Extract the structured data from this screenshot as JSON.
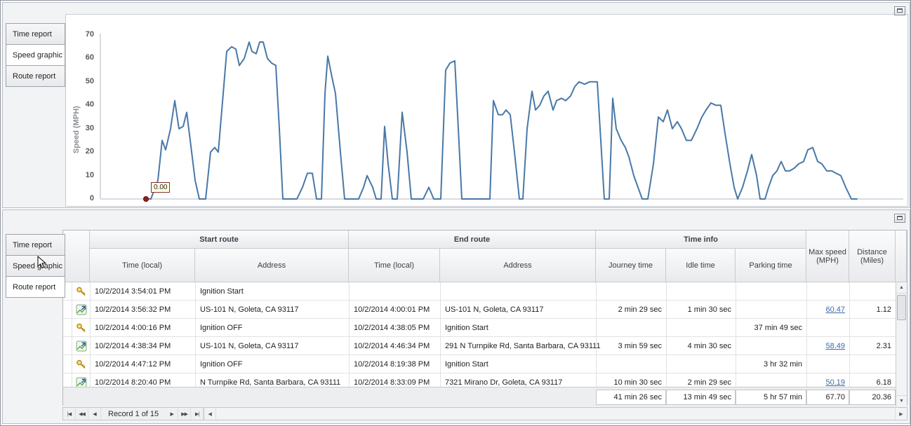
{
  "top_panel": {
    "tabs": [
      {
        "label": "Time report",
        "active": false
      },
      {
        "label": "Speed graphic",
        "active": true
      },
      {
        "label": "Route report",
        "active": false
      }
    ]
  },
  "chart_data": {
    "type": "line",
    "title": "",
    "xlabel": "",
    "ylabel": "Speed (MPH)",
    "ylim": [
      0,
      70
    ],
    "yticks": [
      0,
      10,
      20,
      30,
      40,
      50,
      60,
      70
    ],
    "grid": false,
    "legend": "none",
    "line_color": "#4878a8",
    "marker": {
      "x": 65,
      "value": 0,
      "label": "0.00"
    },
    "points": [
      [
        65,
        0
      ],
      [
        72,
        0
      ],
      [
        82,
        8
      ],
      [
        88,
        25
      ],
      [
        93,
        21
      ],
      [
        100,
        30
      ],
      [
        106,
        42
      ],
      [
        112,
        30
      ],
      [
        118,
        31
      ],
      [
        123,
        37
      ],
      [
        128,
        25
      ],
      [
        135,
        8
      ],
      [
        141,
        0
      ],
      [
        150,
        0
      ],
      [
        157,
        20
      ],
      [
        163,
        22
      ],
      [
        168,
        20
      ],
      [
        175,
        45
      ],
      [
        180,
        63
      ],
      [
        187,
        65
      ],
      [
        193,
        64
      ],
      [
        198,
        57
      ],
      [
        205,
        60
      ],
      [
        212,
        67
      ],
      [
        216,
        63
      ],
      [
        222,
        62
      ],
      [
        227,
        67
      ],
      [
        232,
        67
      ],
      [
        238,
        60
      ],
      [
        244,
        58
      ],
      [
        250,
        57
      ],
      [
        255,
        30
      ],
      [
        260,
        0
      ],
      [
        280,
        0
      ],
      [
        288,
        5
      ],
      [
        295,
        11
      ],
      [
        302,
        11
      ],
      [
        308,
        0
      ],
      [
        315,
        0
      ],
      [
        320,
        45
      ],
      [
        324,
        61
      ],
      [
        330,
        52
      ],
      [
        335,
        45
      ],
      [
        342,
        20
      ],
      [
        348,
        0
      ],
      [
        368,
        0
      ],
      [
        375,
        5
      ],
      [
        380,
        10
      ],
      [
        388,
        5
      ],
      [
        393,
        0
      ],
      [
        400,
        0
      ],
      [
        405,
        31
      ],
      [
        410,
        15
      ],
      [
        416,
        0
      ],
      [
        423,
        0
      ],
      [
        430,
        37
      ],
      [
        437,
        20
      ],
      [
        443,
        0
      ],
      [
        460,
        0
      ],
      [
        468,
        5
      ],
      [
        475,
        0
      ],
      [
        485,
        0
      ],
      [
        492,
        55
      ],
      [
        498,
        58
      ],
      [
        505,
        59
      ],
      [
        510,
        30
      ],
      [
        515,
        0
      ],
      [
        555,
        0
      ],
      [
        560,
        42
      ],
      [
        567,
        36
      ],
      [
        573,
        36
      ],
      [
        578,
        38
      ],
      [
        584,
        36
      ],
      [
        590,
        20
      ],
      [
        597,
        0
      ],
      [
        602,
        0
      ],
      [
        608,
        30
      ],
      [
        615,
        46
      ],
      [
        620,
        38
      ],
      [
        626,
        40
      ],
      [
        632,
        44
      ],
      [
        638,
        46
      ],
      [
        645,
        38
      ],
      [
        650,
        42
      ],
      [
        657,
        43
      ],
      [
        663,
        42
      ],
      [
        670,
        44
      ],
      [
        676,
        48
      ],
      [
        682,
        50
      ],
      [
        690,
        49
      ],
      [
        697,
        50
      ],
      [
        703,
        50
      ],
      [
        708,
        50
      ],
      [
        713,
        25
      ],
      [
        718,
        0
      ],
      [
        725,
        0
      ],
      [
        730,
        43
      ],
      [
        735,
        30
      ],
      [
        742,
        25
      ],
      [
        748,
        22
      ],
      [
        753,
        18
      ],
      [
        760,
        10
      ],
      [
        766,
        5
      ],
      [
        772,
        0
      ],
      [
        780,
        0
      ],
      [
        788,
        15
      ],
      [
        795,
        35
      ],
      [
        802,
        33
      ],
      [
        808,
        38
      ],
      [
        815,
        30
      ],
      [
        822,
        33
      ],
      [
        828,
        30
      ],
      [
        835,
        25
      ],
      [
        842,
        25
      ],
      [
        850,
        30
      ],
      [
        857,
        35
      ],
      [
        863,
        38
      ],
      [
        870,
        41
      ],
      [
        877,
        40
      ],
      [
        884,
        40
      ],
      [
        890,
        28
      ],
      [
        897,
        15
      ],
      [
        903,
        5
      ],
      [
        908,
        0
      ],
      [
        915,
        5
      ],
      [
        922,
        12
      ],
      [
        928,
        19
      ],
      [
        935,
        10
      ],
      [
        940,
        0
      ],
      [
        947,
        0
      ],
      [
        952,
        5
      ],
      [
        958,
        10
      ],
      [
        964,
        12
      ],
      [
        970,
        16
      ],
      [
        976,
        12
      ],
      [
        982,
        12
      ],
      [
        988,
        13
      ],
      [
        995,
        15
      ],
      [
        1002,
        16
      ],
      [
        1008,
        21
      ],
      [
        1015,
        22
      ],
      [
        1022,
        16
      ],
      [
        1028,
        15
      ],
      [
        1035,
        12
      ],
      [
        1042,
        12
      ],
      [
        1048,
        11
      ],
      [
        1055,
        10
      ],
      [
        1062,
        5
      ],
      [
        1070,
        0
      ],
      [
        1078,
        0
      ]
    ]
  },
  "bottom_panel": {
    "tabs": [
      {
        "label": "Time report",
        "active": false
      },
      {
        "label": "Speed graphic",
        "active": false
      },
      {
        "label": "Route report",
        "active": true
      }
    ],
    "grid": {
      "groups": [
        "Start route",
        "End route",
        "Time info"
      ],
      "columns": [
        "Time (local)",
        "Address",
        "Time (local)",
        "Address",
        "Journey time",
        "Idle time",
        "Parking time",
        "Max speed (MPH)",
        "Distance (Miles)"
      ],
      "rows": [
        {
          "icon": "key-icon",
          "start_time": "10/2/2014 3:54:01 PM",
          "start_address": "Ignition Start",
          "end_time": "",
          "end_address": "",
          "journey_time": "",
          "idle_time": "",
          "parking_time": "",
          "max_speed": "",
          "distance": ""
        },
        {
          "icon": "route-icon",
          "start_time": "10/2/2014 3:56:32 PM",
          "start_address": "US-101 N, Goleta, CA 93117",
          "end_time": "10/2/2014 4:00:01 PM",
          "end_address": "US-101 N, Goleta, CA 93117",
          "journey_time": "2 min 29 sec",
          "idle_time": "1 min 30 sec",
          "parking_time": "",
          "max_speed": "60.47",
          "distance": "1.12"
        },
        {
          "icon": "key-icon",
          "start_time": "10/2/2014 4:00:16 PM",
          "start_address": "Ignition OFF",
          "end_time": "10/2/2014 4:38:05 PM",
          "end_address": "Ignition Start",
          "journey_time": "",
          "idle_time": "",
          "parking_time": "37 min 49 sec",
          "max_speed": "",
          "distance": ""
        },
        {
          "icon": "route-icon",
          "start_time": "10/2/2014 4:38:34 PM",
          "start_address": "US-101 N, Goleta, CA 93117",
          "end_time": "10/2/2014 4:46:34 PM",
          "end_address": "291 N Turnpike Rd, Santa Barbara, CA 93111",
          "journey_time": "3 min 59 sec",
          "idle_time": "4 min 30 sec",
          "parking_time": "",
          "max_speed": "58.49",
          "distance": "2.31"
        },
        {
          "icon": "key-icon",
          "start_time": "10/2/2014 4:47:12 PM",
          "start_address": "Ignition OFF",
          "end_time": "10/2/2014 8:19:38 PM",
          "end_address": "Ignition Start",
          "journey_time": "",
          "idle_time": "",
          "parking_time": "3 hr 32 min",
          "max_speed": "",
          "distance": ""
        },
        {
          "icon": "route-icon",
          "start_time": "10/2/2014 8:20:40 PM",
          "start_address": "N Turnpike Rd, Santa Barbara, CA 93111",
          "end_time": "10/2/2014 8:33:09 PM",
          "end_address": "7321 Mirano Dr, Goleta, CA 93117",
          "journey_time": "10 min 30 sec",
          "idle_time": "2 min 29 sec",
          "parking_time": "",
          "max_speed": "50.19",
          "distance": "6.18"
        }
      ],
      "footer": {
        "journey_time": "41 min 26 sec",
        "idle_time": "13 min 49 sec",
        "parking_time": "5 hr 57 min",
        "max_speed": "67.70",
        "distance": "20.36"
      },
      "navigator": {
        "record_label": "Record 1 of 15",
        "buttons_prev": [
          "|◀",
          "◀◀",
          "◀"
        ],
        "buttons_next": [
          "▶",
          "▶▶",
          "▶|"
        ]
      }
    }
  }
}
